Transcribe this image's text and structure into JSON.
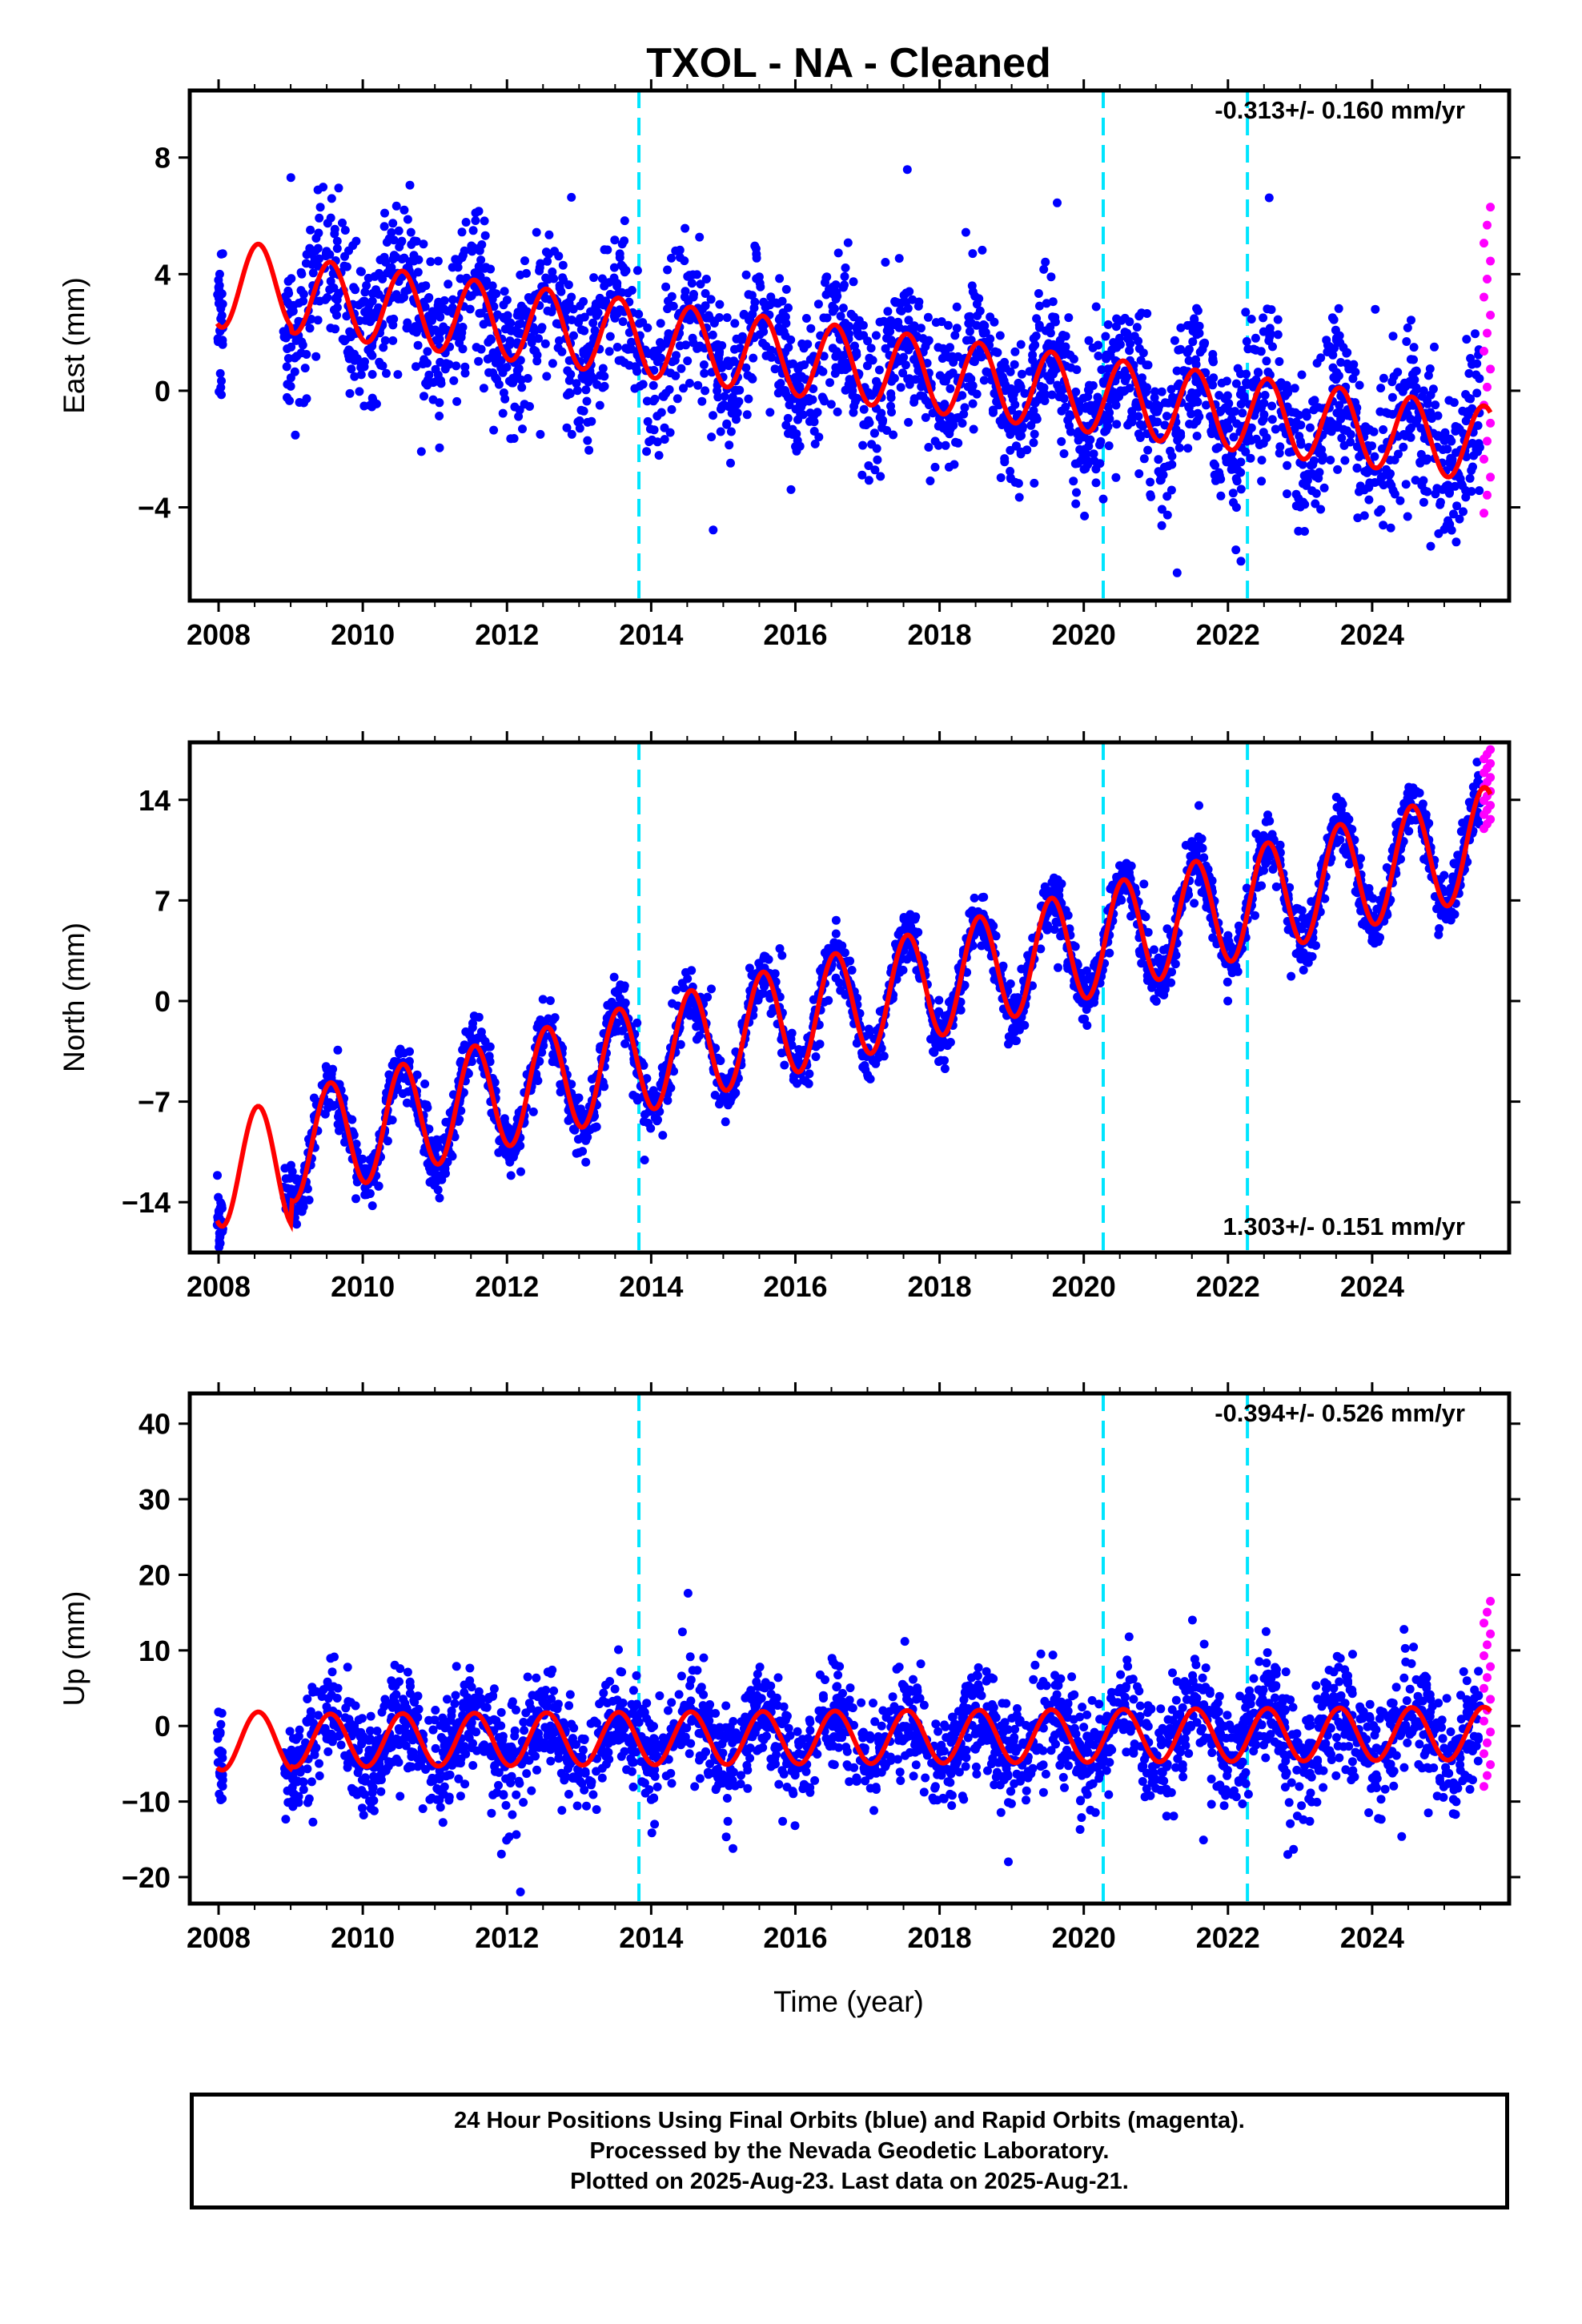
{
  "title": "TXOL  - NA - Cleaned",
  "xlabel": "Time (year)",
  "footer": {
    "line1": "24 Hour Positions Using Final Orbits (blue) and Rapid Orbits (magenta).",
    "line2": "Processed by the Nevada Geodetic Laboratory.",
    "line3": "Plotted on 2025-Aug-23. Last data on 2025-Aug-21."
  },
  "colors": {
    "final": "#0000ff",
    "rapid": "#ff00ff",
    "model": "#ff0000",
    "events": "#00e5ff"
  },
  "chart_data": [
    {
      "type": "scatter",
      "ylabel": "East (mm)",
      "rate": "-0.313+/- 0.160 mm/yr",
      "xlim": [
        2007.6,
        2025.9
      ],
      "ylim": [
        -7.2,
        10.3
      ],
      "yticks": [
        -4,
        0,
        4,
        8
      ],
      "xticks": [
        2008,
        2010,
        2012,
        2014,
        2016,
        2018,
        2020,
        2022,
        2024
      ],
      "events": [
        2013.83,
        2020.27,
        2022.27
      ],
      "series": [
        {
          "kind": "final",
          "start": 2007.98,
          "end": 2025.5,
          "trend_start": 3.6,
          "trend_end": -1.8,
          "amplitude": 1.3,
          "noise": 1.3
        },
        {
          "kind": "rapid",
          "start": 2025.55,
          "end": 2025.64,
          "y_range": [
            -4.2,
            6.3
          ]
        },
        {
          "kind": "model",
          "start": 2007.98,
          "end": 2025.64
        }
      ]
    },
    {
      "type": "scatter",
      "ylabel": "North (mm)",
      "rate": "1.303+/- 0.151 mm/yr",
      "xlim": [
        2007.6,
        2025.9
      ],
      "ylim": [
        -17.5,
        18.0
      ],
      "yticks": [
        -14,
        -7,
        0,
        7,
        14
      ],
      "xticks": [
        2008,
        2010,
        2012,
        2014,
        2016,
        2018,
        2020,
        2022,
        2024
      ],
      "events": [
        2013.83,
        2020.27,
        2022.27
      ],
      "series": [
        {
          "kind": "final",
          "start": 2007.98,
          "end": 2025.5,
          "trend_start": -11.5,
          "trend_end": 11.0,
          "amplitude": 3.8,
          "noise": 1.0
        },
        {
          "kind": "rapid",
          "start": 2025.55,
          "end": 2025.64,
          "y_range": [
            12.0,
            17.5
          ]
        },
        {
          "kind": "model",
          "start": 2007.98,
          "end": 2025.64
        }
      ]
    },
    {
      "type": "scatter",
      "ylabel": "Up (mm)",
      "rate": "-0.394+/- 0.526 mm/yr",
      "xlim": [
        2007.6,
        2025.9
      ],
      "ylim": [
        -23.5,
        44.0
      ],
      "yticks": [
        -20,
        -10,
        0,
        10,
        20,
        30,
        40
      ],
      "xticks": [
        2008,
        2010,
        2012,
        2014,
        2016,
        2018,
        2020,
        2022,
        2024
      ],
      "events": [
        2013.83,
        2020.27,
        2022.27
      ],
      "series": [
        {
          "kind": "final",
          "start": 2007.98,
          "end": 2025.5,
          "trend_start": -2.0,
          "trend_end": -1.0,
          "amplitude": 3.5,
          "noise": 3.6
        },
        {
          "kind": "rapid",
          "start": 2025.55,
          "end": 2025.64,
          "y_range": [
            -8.0,
            16.5
          ]
        },
        {
          "kind": "model",
          "start": 2007.98,
          "end": 2025.64
        }
      ]
    }
  ]
}
